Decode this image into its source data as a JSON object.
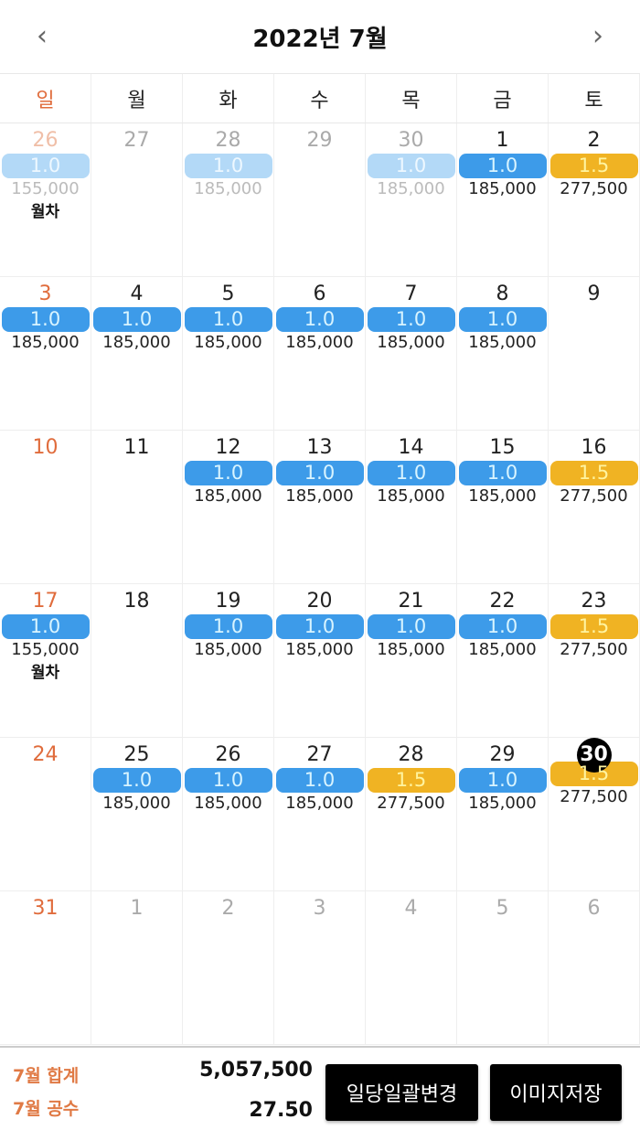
{
  "header": {
    "title": "2022년 7월",
    "prev_icon": "chevron-left-icon",
    "next_icon": "chevron-right-icon"
  },
  "weekdays": [
    "일",
    "월",
    "화",
    "수",
    "목",
    "금",
    "토"
  ],
  "colors": {
    "full": "#3d9be9",
    "half": "#f0b323",
    "sunday": "#e06c3c"
  },
  "weeks": [
    [
      {
        "d": "26",
        "muted": true,
        "badge": "1.0",
        "kind": "faded",
        "amount": "155,000",
        "note": "월차"
      },
      {
        "d": "27",
        "muted": true
      },
      {
        "d": "28",
        "muted": true,
        "badge": "1.0",
        "kind": "faded",
        "amount": "185,000"
      },
      {
        "d": "29",
        "muted": true
      },
      {
        "d": "30",
        "muted": true,
        "badge": "1.0",
        "kind": "faded",
        "amount": "185,000"
      },
      {
        "d": "1",
        "badge": "1.0",
        "kind": "full",
        "amount": "185,000"
      },
      {
        "d": "2",
        "badge": "1.5",
        "kind": "half",
        "amount": "277,500"
      }
    ],
    [
      {
        "d": "3",
        "badge": "1.0",
        "kind": "full",
        "amount": "185,000"
      },
      {
        "d": "4",
        "badge": "1.0",
        "kind": "full",
        "amount": "185,000"
      },
      {
        "d": "5",
        "badge": "1.0",
        "kind": "full",
        "amount": "185,000"
      },
      {
        "d": "6",
        "badge": "1.0",
        "kind": "full",
        "amount": "185,000"
      },
      {
        "d": "7",
        "badge": "1.0",
        "kind": "full",
        "amount": "185,000"
      },
      {
        "d": "8",
        "badge": "1.0",
        "kind": "full",
        "amount": "185,000"
      },
      {
        "d": "9"
      }
    ],
    [
      {
        "d": "10"
      },
      {
        "d": "11"
      },
      {
        "d": "12",
        "badge": "1.0",
        "kind": "full",
        "amount": "185,000"
      },
      {
        "d": "13",
        "badge": "1.0",
        "kind": "full",
        "amount": "185,000"
      },
      {
        "d": "14",
        "badge": "1.0",
        "kind": "full",
        "amount": "185,000"
      },
      {
        "d": "15",
        "badge": "1.0",
        "kind": "full",
        "amount": "185,000"
      },
      {
        "d": "16",
        "badge": "1.5",
        "kind": "half",
        "amount": "277,500"
      }
    ],
    [
      {
        "d": "17",
        "badge": "1.0",
        "kind": "full",
        "amount": "155,000",
        "note": "월차"
      },
      {
        "d": "18"
      },
      {
        "d": "19",
        "badge": "1.0",
        "kind": "full",
        "amount": "185,000"
      },
      {
        "d": "20",
        "badge": "1.0",
        "kind": "full",
        "amount": "185,000"
      },
      {
        "d": "21",
        "badge": "1.0",
        "kind": "full",
        "amount": "185,000"
      },
      {
        "d": "22",
        "badge": "1.0",
        "kind": "full",
        "amount": "185,000"
      },
      {
        "d": "23",
        "badge": "1.5",
        "kind": "half",
        "amount": "277,500"
      }
    ],
    [
      {
        "d": "24"
      },
      {
        "d": "25",
        "badge": "1.0",
        "kind": "full",
        "amount": "185,000"
      },
      {
        "d": "26",
        "badge": "1.0",
        "kind": "full",
        "amount": "185,000"
      },
      {
        "d": "27",
        "badge": "1.0",
        "kind": "full",
        "amount": "185,000"
      },
      {
        "d": "28",
        "badge": "1.5",
        "kind": "half",
        "amount": "277,500"
      },
      {
        "d": "29",
        "badge": "1.0",
        "kind": "full",
        "amount": "185,000"
      },
      {
        "d": "30",
        "today": true,
        "badge": "1.5",
        "kind": "half",
        "amount": "277,500"
      }
    ],
    [
      {
        "d": "31"
      },
      {
        "d": "1",
        "muted": true
      },
      {
        "d": "2",
        "muted": true
      },
      {
        "d": "3",
        "muted": true
      },
      {
        "d": "4",
        "muted": true
      },
      {
        "d": "5",
        "muted": true
      },
      {
        "d": "6",
        "muted": true
      }
    ]
  ],
  "footer": {
    "total_label": "7월 합계",
    "total_value": "5,057,500",
    "days_label": "7월 공수",
    "days_value": "27.50",
    "bulk_button": "일당일괄변경",
    "save_button": "이미지저장"
  }
}
